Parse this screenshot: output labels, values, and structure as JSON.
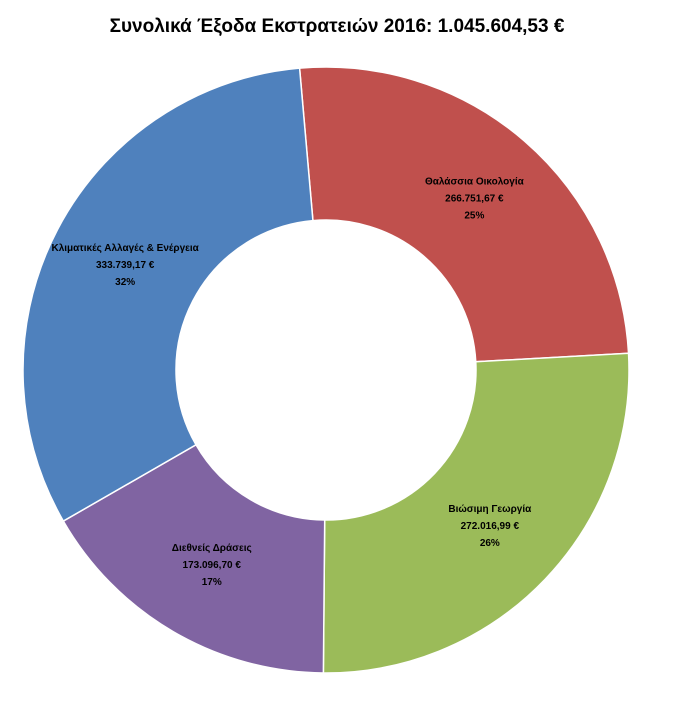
{
  "chart_data": {
    "type": "donut",
    "title": "Συνολικά Έξοδα Εκστρατειών 2016:  1.045.604,53 €",
    "categories": [
      "Θαλάσσια Οικολογία",
      "Βιώσιμη Γεωργία",
      "Διεθνείς Δράσεις",
      "Κλιματικές Αλλαγές & Ενέργεια"
    ],
    "values": [
      266751.67,
      272016.99,
      173096.7,
      333739.17
    ],
    "value_labels": [
      "266.751,67 €",
      "272.016,99 €",
      "173.096,70 €",
      "333.739,17 €"
    ],
    "percent_labels": [
      "25%",
      "26%",
      "17%",
      "32%"
    ],
    "colors": [
      "#c0504d",
      "#9bbb59",
      "#8064a2",
      "#4f81bd"
    ]
  }
}
